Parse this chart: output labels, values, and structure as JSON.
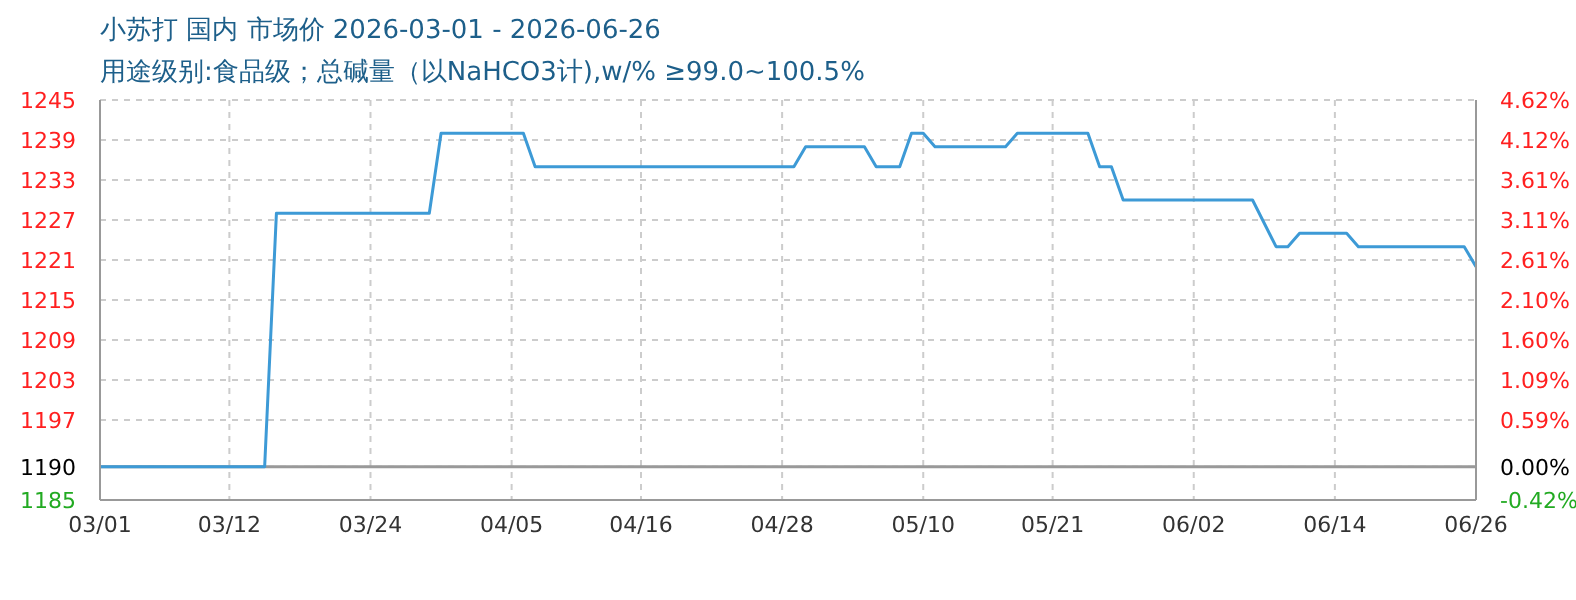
{
  "chart_data": {
    "type": "line",
    "title": "小苏打 国内 市场价 2026-03-01 - 2026-06-26",
    "subtitle": "用途级别:食品级；总碱量（以NaHCO3计),w/% ≥99.0~100.5%",
    "x": [
      "--03-01",
      "--03-15",
      "--03-16",
      "--03-29",
      "--03-30",
      "--04-06",
      "--04-07",
      "--04-29",
      "--04-30",
      "--05-05",
      "--05-06",
      "--05-08",
      "--05-09",
      "--05-10",
      "--05-11",
      "--05-17",
      "--05-18",
      "--05-24",
      "--05-25",
      "--05-26",
      "--05-27",
      "--06-07",
      "--06-09",
      "--06-10",
      "--06-11",
      "--06-15",
      "--06-16",
      "--06-25",
      "--06-26"
    ],
    "series": [
      {
        "color": "#3d9ad6",
        "values": [
          1190,
          1190,
          1228,
          1228,
          1240,
          1240,
          1235,
          1235,
          1238,
          1238,
          1235,
          1235,
          1240,
          1240,
          1238,
          1238,
          1240,
          1240,
          1235,
          1235,
          1230,
          1230,
          1223,
          1223,
          1225,
          1225,
          1223,
          1223,
          1220
        ]
      }
    ],
    "xlim": [
      "--03-01",
      "--06-26"
    ],
    "xticks": [
      {
        "value": "--03-01",
        "label": "03/01"
      },
      {
        "value": "--03-12",
        "label": "03/12"
      },
      {
        "value": "--03-24",
        "label": "03/24"
      },
      {
        "value": "--04-05",
        "label": "04/05"
      },
      {
        "value": "--04-16",
        "label": "04/16"
      },
      {
        "value": "--04-28",
        "label": "04/28"
      },
      {
        "value": "--05-10",
        "label": "05/10"
      },
      {
        "value": "--05-21",
        "label": "05/21"
      },
      {
        "value": "--06-02",
        "label": "06/02"
      },
      {
        "value": "--06-14",
        "label": "06/14"
      },
      {
        "value": "--06-26",
        "label": "06/26"
      }
    ],
    "ylim": [
      1185,
      1245
    ],
    "yticks": [
      1185,
      1190,
      1197,
      1203,
      1209,
      1215,
      1221,
      1227,
      1233,
      1239,
      1245
    ],
    "y2lim": [
      -0.42,
      4.62
    ],
    "y2ticks": [
      {
        "value": -0.42,
        "label": "-0.42%"
      },
      {
        "value": 0,
        "label": "0.00%"
      },
      {
        "value": 0.59,
        "label": "0.59%"
      },
      {
        "value": 1.09,
        "label": "1.09%"
      },
      {
        "value": 1.6,
        "label": "1.60%"
      },
      {
        "value": 2.1,
        "label": "2.10%"
      },
      {
        "value": 2.61,
        "label": "2.61%"
      },
      {
        "value": 3.11,
        "label": "3.11%"
      },
      {
        "value": 3.61,
        "label": "3.61%"
      },
      {
        "value": 4.12,
        "label": "4.12%"
      },
      {
        "value": 4.62,
        "label": "4.62%"
      }
    ],
    "ref_lines": [
      {
        "axis": "y",
        "value": 1190,
        "color": "#999999"
      }
    ],
    "grid": true,
    "marker": "none",
    "line_style": "solid"
  }
}
